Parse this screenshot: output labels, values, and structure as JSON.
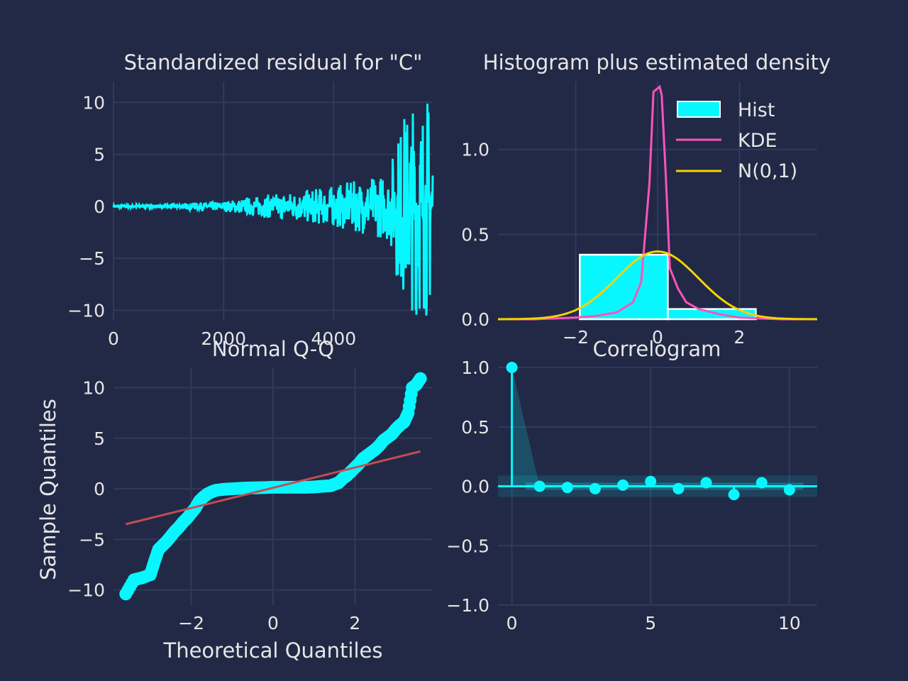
{
  "colors": {
    "background": "#212946",
    "grid": "#2f3a61",
    "cyan": "#08F7FE",
    "pink": "#FE53BB",
    "yellow": "#F5D300",
    "red": "#C44E52",
    "text": "#e6e6e6"
  },
  "chart_data": [
    {
      "type": "line",
      "title": "Standardized residual for \"C\"",
      "xlabel": "",
      "ylabel": "",
      "xlim": [
        0,
        5800
      ],
      "ylim": [
        -11,
        12
      ],
      "xticks": [
        0,
        2000,
        4000
      ],
      "xtick_labels": [
        "0",
        "2000",
        "4000"
      ],
      "yticks": [
        10,
        5,
        0,
        -5,
        -10
      ],
      "ytick_labels": [
        "10",
        "5",
        "0",
        "−5",
        "−10"
      ],
      "grid": true,
      "series": [
        {
          "color": "#08F7FE",
          "envelope": {
            "x": [
              0,
              1000,
              2000,
              3000,
              3500,
              4000,
              4500,
              5000,
              5150,
              5300,
              5500,
              5700,
              5800
            ],
            "amplitude": [
              0.1,
              0.2,
              0.5,
              1.3,
              1.6,
              2.0,
              2.6,
              3.3,
              7.0,
              9.5,
              10.5,
              11.0,
              10.5
            ]
          }
        }
      ]
    },
    {
      "type": "bar",
      "title": "Histogram plus estimated density",
      "xlabel": "",
      "ylabel": "",
      "xlim": [
        -3.9,
        3.9
      ],
      "ylim": [
        0,
        1.4
      ],
      "xticks": [
        -2,
        0,
        2
      ],
      "xtick_labels": [
        "−2",
        "0",
        "2"
      ],
      "yticks": [
        0.0,
        0.5,
        1.0
      ],
      "ytick_labels": [
        "0.0",
        "0.5",
        "1.0"
      ],
      "grid": true,
      "legend_position": "top-right",
      "legend": [
        "Hist",
        "KDE",
        "N(0,1)"
      ],
      "histogram": {
        "bin_edges": [
          -1.9,
          0.25,
          2.4
        ],
        "values": [
          0.38,
          0.06
        ],
        "color": "#08F7FE"
      },
      "kde": {
        "color": "#FE53BB",
        "x": [
          -3.9,
          -3.0,
          -2.0,
          -1.5,
          -1.0,
          -0.6,
          -0.4,
          -0.2,
          -0.1,
          0.0,
          0.05,
          0.1,
          0.2,
          0.3,
          0.5,
          0.7,
          1.0,
          1.5,
          2.0,
          3.0,
          3.9
        ],
        "y": [
          0.0,
          0.0,
          0.01,
          0.02,
          0.04,
          0.1,
          0.22,
          0.8,
          1.34,
          1.36,
          1.37,
          1.32,
          0.85,
          0.3,
          0.18,
          0.1,
          0.06,
          0.03,
          0.01,
          0.0,
          0.0
        ]
      },
      "normal": {
        "color": "#F5D300",
        "mean": 0,
        "sd": 1
      }
    },
    {
      "type": "scatter",
      "title": "Normal Q-Q",
      "xlabel": "Theoretical Quantiles",
      "ylabel": "Sample Quantiles",
      "xlim": [
        -3.9,
        3.9
      ],
      "ylim": [
        -11.5,
        12
      ],
      "xticks": [
        -2,
        0,
        2
      ],
      "xtick_labels": [
        "−2",
        "0",
        "2"
      ],
      "yticks": [
        10,
        5,
        0,
        -5,
        -10
      ],
      "ytick_labels": [
        "10",
        "5",
        "0",
        "−5",
        "−10"
      ],
      "grid": true,
      "points": {
        "color": "#08F7FE",
        "x": [
          -3.6,
          -3.4,
          -3.2,
          -3.0,
          -2.9,
          -2.8,
          -2.7,
          -2.6,
          -2.5,
          -2.4,
          -2.3,
          -2.2,
          -2.1,
          -2.0,
          -1.9,
          -1.8,
          -1.7,
          -1.6,
          -1.5,
          -1.4,
          -1.2,
          -1.0,
          -0.8,
          -0.6,
          -0.4,
          -0.2,
          0.0,
          0.2,
          0.4,
          0.6,
          0.8,
          1.0,
          1.2,
          1.4,
          1.5,
          1.6,
          1.7,
          1.8,
          1.9,
          2.0,
          2.1,
          2.2,
          2.3,
          2.4,
          2.5,
          2.6,
          2.7,
          2.8,
          2.9,
          3.0,
          3.1,
          3.2,
          3.3,
          3.4,
          3.5,
          3.6
        ],
        "y": [
          -10.4,
          -9.0,
          -8.8,
          -8.5,
          -7.2,
          -6.0,
          -5.6,
          -5.2,
          -4.7,
          -4.2,
          -3.8,
          -3.3,
          -2.9,
          -2.4,
          -1.9,
          -1.2,
          -0.8,
          -0.5,
          -0.3,
          -0.15,
          -0.05,
          0.0,
          0.05,
          0.08,
          0.1,
          0.12,
          0.15,
          0.15,
          0.15,
          0.15,
          0.15,
          0.18,
          0.25,
          0.3,
          0.45,
          0.6,
          1.0,
          1.3,
          1.7,
          2.1,
          2.5,
          3.0,
          3.3,
          3.6,
          3.9,
          4.3,
          4.8,
          5.1,
          5.4,
          5.9,
          6.3,
          6.6,
          7.5,
          10.0,
          10.3,
          10.9
        ]
      },
      "reference_line": {
        "color": "#C44E52",
        "x": [
          -3.6,
          3.6
        ],
        "y": [
          -3.5,
          3.7
        ]
      }
    },
    {
      "type": "scatter",
      "title": "Correlogram",
      "xlabel": "",
      "ylabel": "",
      "xlim": [
        -0.5,
        11
      ],
      "ylim": [
        -1.0,
        1.0
      ],
      "xticks": [
        0,
        5,
        10
      ],
      "xtick_labels": [
        "0",
        "5",
        "10"
      ],
      "yticks": [
        1.0,
        0.5,
        0.0,
        -0.5,
        -1.0
      ],
      "ytick_labels": [
        "1.0",
        "0.5",
        "0.0",
        "−0.5",
        "−1.0"
      ],
      "grid": true,
      "lags": [
        0,
        1,
        2,
        3,
        4,
        5,
        6,
        7,
        8,
        9,
        10
      ],
      "acf": [
        1.0,
        0.0,
        -0.01,
        -0.02,
        0.01,
        0.04,
        -0.02,
        0.03,
        -0.07,
        0.03,
        -0.03
      ],
      "confidence_band": [
        -0.03,
        0.03
      ],
      "color": "#08F7FE"
    }
  ]
}
